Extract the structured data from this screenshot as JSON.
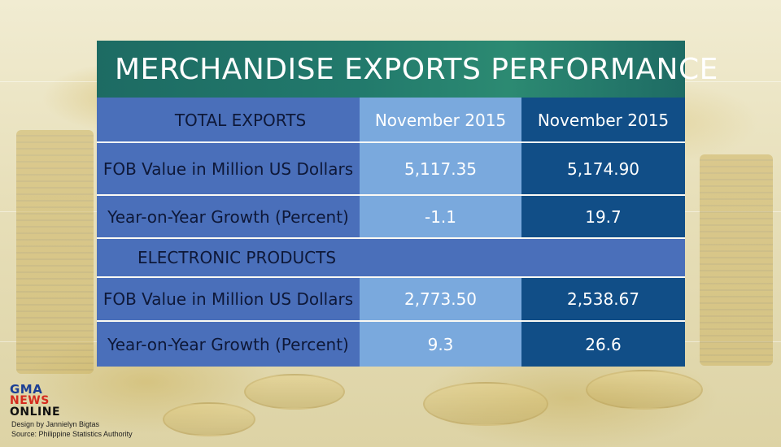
{
  "title": "MERCHANDISE EXPORTS PERFORMANCE",
  "header": {
    "label": "TOTAL EXPORTS",
    "col1": "November 2015",
    "col2": "November 2015"
  },
  "rows": [
    {
      "label": "FOB Value in Million US Dollars",
      "v1": "5,117.35",
      "v2": "5,174.90"
    },
    {
      "label": "Year-on-Year Growth (Percent)",
      "v1": "-1.1",
      "v2": "19.7"
    }
  ],
  "section2": {
    "label": "ELECTRONIC PRODUCTS"
  },
  "rows2": [
    {
      "label": "FOB Value in Million US Dollars",
      "v1": "2,773.50",
      "v2": "2,538.67"
    },
    {
      "label": "Year-on-Year Growth (Percent)",
      "v1": "9.3",
      "v2": "26.6"
    }
  ],
  "logo": {
    "line1": "GMA",
    "line2": "NEWS",
    "line3": "ONLINE"
  },
  "credits": {
    "design": "Design by Jannielyn Bigtas",
    "source": "Source: Philippine Statistics Authority"
  },
  "colors": {
    "title_bg": "#227a6c",
    "label_col": "#4a6fba",
    "col1": "#7aa9dd",
    "col2": "#114e87"
  }
}
